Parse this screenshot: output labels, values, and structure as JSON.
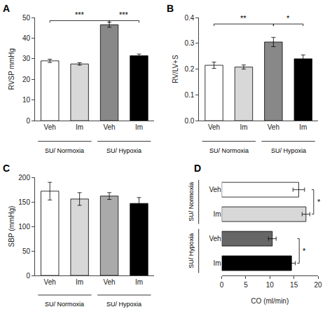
{
  "chart_data": [
    {
      "type": "bar",
      "title": "A",
      "ylabel": "RVSP mmHg",
      "categories": [
        "Veh",
        "Im",
        "Veh",
        "Im"
      ],
      "values": [
        29.0,
        27.5,
        46.5,
        31.5
      ],
      "errors": [
        0.8,
        0.6,
        1.2,
        0.8
      ],
      "colors": [
        "white",
        "#d8d8d8",
        "#888888",
        "black"
      ],
      "ylim": [
        0,
        50
      ],
      "yticks": [
        0,
        10,
        20,
        30,
        40,
        50
      ],
      "grid": false,
      "annotations": [
        {
          "text": "SU/ Normoxia",
          "group": [
            0,
            1
          ]
        },
        {
          "text": "SU/ Hypoxia",
          "group": [
            2,
            3
          ]
        },
        {
          "text": "***",
          "bracket": [
            0,
            2
          ],
          "y": 48.5
        },
        {
          "text": "***",
          "bracket": [
            2,
            3
          ],
          "y": 48.5
        }
      ]
    },
    {
      "type": "bar",
      "title": "B",
      "ylabel": "RV/LV+S",
      "categories": [
        "Veh",
        "Im",
        "Veh",
        "Im"
      ],
      "values": [
        0.215,
        0.208,
        0.305,
        0.24
      ],
      "errors": [
        0.012,
        0.008,
        0.018,
        0.015
      ],
      "colors": [
        "white",
        "#d8d8d8",
        "#888888",
        "black"
      ],
      "ylim": [
        0.0,
        0.4
      ],
      "yticks": [
        {
          "value": 0.0,
          "label": "0.0"
        },
        0.1,
        0.2,
        0.3,
        0.4
      ],
      "grid": false,
      "annotations": [
        {
          "text": "SU/ Normoxia",
          "group": [
            0,
            1
          ]
        },
        {
          "text": "SU/ Hypoxia",
          "group": [
            2,
            3
          ]
        },
        {
          "text": "**",
          "bracket": [
            0,
            2
          ],
          "y": 0.375
        },
        {
          "text": "*",
          "bracket": [
            2,
            3
          ],
          "y": 0.375
        }
      ]
    },
    {
      "type": "bar",
      "title": "C",
      "ylabel": "SBP (mmHg)",
      "categories": [
        "Veh",
        "Im",
        "Veh",
        "Im"
      ],
      "values": [
        172.0,
        156.0,
        162.0,
        147.0
      ],
      "errors": [
        18.0,
        13.0,
        7.0,
        12.0
      ],
      "colors": [
        "white",
        "#d8d8d8",
        "#aaaaaa",
        "black"
      ],
      "ylim": [
        0,
        200
      ],
      "yticks": [
        0,
        50,
        100,
        150,
        200
      ],
      "grid": false,
      "annotations": [
        {
          "text": "SU/ Normoxia",
          "group": [
            0,
            1
          ]
        },
        {
          "text": "SU/ Hypoxia",
          "group": [
            2,
            3
          ]
        }
      ]
    },
    {
      "type": "bar",
      "title": "D",
      "xlabel": "CO (ml/min)",
      "orientation": "horizontal",
      "categories": [
        "Veh",
        "Im",
        "Veh",
        "Im"
      ],
      "values": [
        16.0,
        17.5,
        10.5,
        14.5
      ],
      "errors": [
        1.2,
        0.8,
        0.8,
        0.8
      ],
      "colors": [
        "white",
        "#d8d8d8",
        "#666666",
        "black"
      ],
      "xlim": [
        0,
        20
      ],
      "xticks": [
        0,
        5,
        10,
        15,
        20
      ],
      "grid": false,
      "annotations": [
        {
          "text": "SU/ Normoxia",
          "group": [
            0,
            1
          ]
        },
        {
          "text": "SU/ Hypoxia",
          "group": [
            2,
            3
          ]
        },
        {
          "text": "*",
          "bracket": [
            0,
            1
          ],
          "x": 19.1
        },
        {
          "text": "*",
          "bracket": [
            2,
            3
          ],
          "x": 16.1
        }
      ]
    }
  ]
}
